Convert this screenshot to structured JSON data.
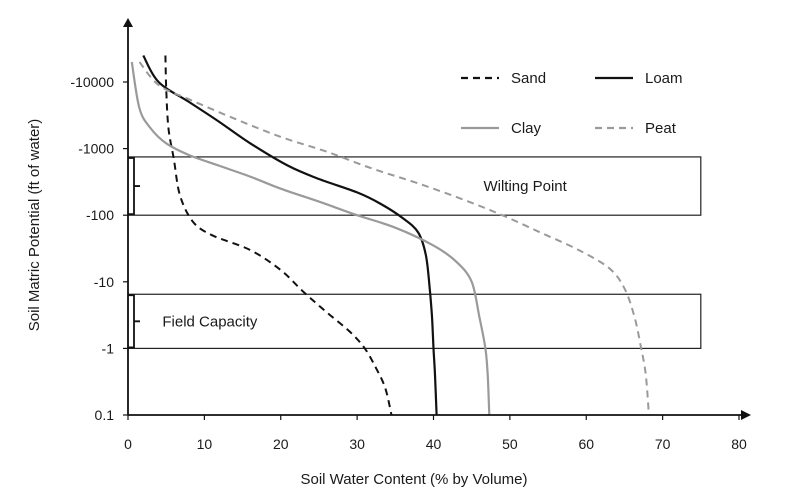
{
  "chart_data": {
    "type": "line",
    "title": "",
    "xlabel": "Soil Water Content (% by Volume)",
    "ylabel": "Soil Matric  Potential (ft of water)",
    "xlim": [
      0,
      80
    ],
    "ylim": [
      0.1,
      10000
    ],
    "y_scale": "log",
    "x_ticks": [
      0,
      10,
      20,
      30,
      40,
      50,
      60,
      70,
      80
    ],
    "x_tick_labels": [
      "0",
      "10",
      "20",
      "30",
      "40",
      "50",
      "60",
      "70",
      "80"
    ],
    "y_ticks": [
      0.1,
      1,
      10,
      100,
      1000,
      10000
    ],
    "y_tick_labels": [
      "0.1",
      "-1",
      "-10",
      "-100",
      "-1000",
      "-10000"
    ],
    "grid": false,
    "legend_position": "top-right",
    "series": [
      {
        "name": "Sand",
        "color": "#111111",
        "dash": "dashed",
        "points": [
          [
            4.9,
            25000
          ],
          [
            5.0,
            8000
          ],
          [
            5.3,
            2000
          ],
          [
            6.0,
            700
          ],
          [
            6.8,
            200
          ],
          [
            8.5,
            80
          ],
          [
            11,
            50
          ],
          [
            16,
            30
          ],
          [
            20,
            15
          ],
          [
            23,
            7
          ],
          [
            26,
            3.5
          ],
          [
            29,
            1.8
          ],
          [
            31,
            1.0
          ],
          [
            32.5,
            0.5
          ],
          [
            33.7,
            0.25
          ],
          [
            34.5,
            0.1
          ]
        ]
      },
      {
        "name": "Loam",
        "color": "#111111",
        "dash": "solid",
        "points": [
          [
            2.0,
            25000
          ],
          [
            4.0,
            10000
          ],
          [
            8,
            5000
          ],
          [
            12,
            2500
          ],
          [
            16,
            1200
          ],
          [
            21,
            550
          ],
          [
            25,
            350
          ],
          [
            30,
            220
          ],
          [
            33,
            150
          ],
          [
            36,
            90
          ],
          [
            38,
            55
          ],
          [
            39,
            25
          ],
          [
            39.5,
            8
          ],
          [
            39.8,
            3
          ],
          [
            40.0,
            1
          ],
          [
            40.2,
            0.4
          ],
          [
            40.4,
            0.1
          ]
        ]
      },
      {
        "name": "Clay",
        "color": "#9a9a9a",
        "dash": "solid",
        "points": [
          [
            0.5,
            20000
          ],
          [
            1.5,
            4000
          ],
          [
            3,
            2000
          ],
          [
            5,
            1200
          ],
          [
            8,
            800
          ],
          [
            12,
            550
          ],
          [
            16,
            380
          ],
          [
            20,
            250
          ],
          [
            25,
            160
          ],
          [
            30,
            100
          ],
          [
            35,
            65
          ],
          [
            40,
            35
          ],
          [
            43,
            20
          ],
          [
            45,
            10
          ],
          [
            46,
            3
          ],
          [
            46.8,
            1
          ],
          [
            47.1,
            0.4
          ],
          [
            47.3,
            0.1
          ]
        ]
      },
      {
        "name": "Peat",
        "color": "#9a9a9a",
        "dash": "dashed",
        "points": [
          [
            1.5,
            20000
          ],
          [
            4,
            9000
          ],
          [
            8,
            5500
          ],
          [
            14,
            2800
          ],
          [
            20,
            1500
          ],
          [
            26,
            900
          ],
          [
            32,
            500
          ],
          [
            38,
            300
          ],
          [
            44,
            170
          ],
          [
            49,
            100
          ],
          [
            54,
            55
          ],
          [
            59,
            30
          ],
          [
            63,
            16
          ],
          [
            65,
            8
          ],
          [
            66.3,
            3
          ],
          [
            67.2,
            1
          ],
          [
            67.8,
            0.4
          ],
          [
            68.2,
            0.1
          ]
        ]
      }
    ],
    "bands": [
      {
        "label": "Wilting Point",
        "x_range": [
          0,
          75
        ],
        "y_range": [
          100,
          750
        ]
      },
      {
        "label": "Field Capacity",
        "x_range": [
          0,
          75
        ],
        "y_range": [
          1,
          6.5
        ]
      }
    ]
  }
}
